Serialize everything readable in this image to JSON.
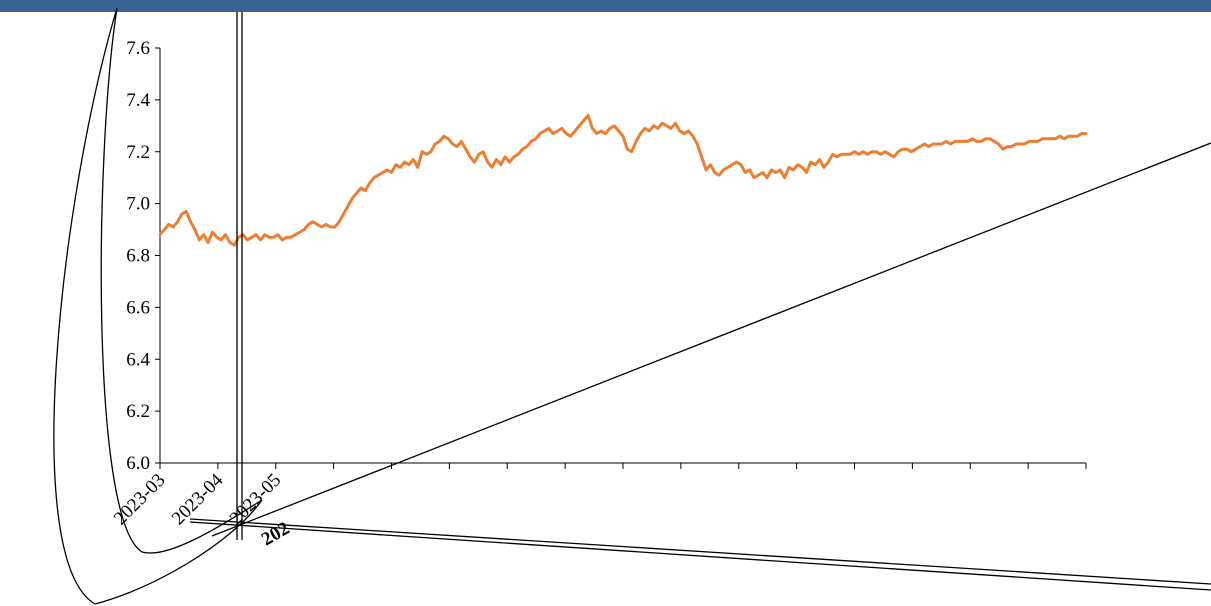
{
  "colors": {
    "header": "#3b6294",
    "series": "#ed7d31",
    "axis": "#000000"
  },
  "chart_data": {
    "type": "line",
    "title": "",
    "xlabel": "",
    "ylabel": "",
    "ylim": [
      6.0,
      7.6
    ],
    "y_ticks": [
      6.0,
      6.2,
      6.4,
      6.6,
      6.8,
      7.0,
      7.2,
      7.4,
      7.6
    ],
    "y_tick_labels": [
      "6.0",
      "6.2",
      "6.4",
      "6.6",
      "6.8",
      "7.0",
      "7.2",
      "7.4",
      "7.6"
    ],
    "x_tick_labels": [
      "2023-03",
      "2023-04",
      "2023-05",
      "",
      "",
      "",
      "",
      "",
      "",
      "",
      "",
      "",
      "",
      "",
      "",
      "",
      ""
    ],
    "x_fragment_label": "202",
    "grid": false,
    "legend": "none",
    "series": [
      {
        "values": [
          6.88,
          6.9,
          6.92,
          6.91,
          6.93,
          6.96,
          6.97,
          6.93,
          6.9,
          6.86,
          6.88,
          6.85,
          6.89,
          6.87,
          6.86,
          6.88,
          6.85,
          6.84,
          6.87,
          6.88,
          6.86,
          6.87,
          6.88,
          6.86,
          6.88,
          6.87,
          6.87,
          6.88,
          6.86,
          6.87,
          6.87,
          6.88,
          6.89,
          6.9,
          6.92,
          6.93,
          6.92,
          6.91,
          6.92,
          6.91,
          6.91,
          6.93,
          6.96,
          6.99,
          7.02,
          7.04,
          7.06,
          7.05,
          7.08,
          7.1,
          7.11,
          7.12,
          7.13,
          7.12,
          7.15,
          7.14,
          7.16,
          7.15,
          7.17,
          7.14,
          7.2,
          7.19,
          7.2,
          7.23,
          7.24,
          7.26,
          7.25,
          7.23,
          7.22,
          7.24,
          7.21,
          7.18,
          7.16,
          7.19,
          7.2,
          7.16,
          7.14,
          7.17,
          7.15,
          7.18,
          7.16,
          7.18,
          7.19,
          7.21,
          7.22,
          7.24,
          7.25,
          7.27,
          7.28,
          7.29,
          7.27,
          7.28,
          7.29,
          7.27,
          7.26,
          7.28,
          7.3,
          7.32,
          7.34,
          7.29,
          7.27,
          7.28,
          7.27,
          7.29,
          7.3,
          7.28,
          7.26,
          7.21,
          7.2,
          7.24,
          7.27,
          7.29,
          7.28,
          7.3,
          7.29,
          7.31,
          7.3,
          7.29,
          7.31,
          7.28,
          7.27,
          7.28,
          7.26,
          7.23,
          7.18,
          7.13,
          7.15,
          7.12,
          7.11,
          7.13,
          7.14,
          7.15,
          7.16,
          7.15,
          7.12,
          7.13,
          7.1,
          7.11,
          7.12,
          7.1,
          7.13,
          7.12,
          7.13,
          7.1,
          7.14,
          7.13,
          7.15,
          7.14,
          7.12,
          7.16,
          7.15,
          7.17,
          7.14,
          7.16,
          7.19,
          7.18,
          7.19,
          7.19,
          7.19,
          7.2,
          7.19,
          7.2,
          7.19,
          7.2,
          7.2,
          7.19,
          7.2,
          7.19,
          7.18,
          7.2,
          7.21,
          7.21,
          7.2,
          7.21,
          7.22,
          7.23,
          7.22,
          7.23,
          7.23,
          7.23,
          7.24,
          7.23,
          7.24,
          7.24,
          7.24,
          7.24,
          7.25,
          7.24,
          7.24,
          7.25,
          7.25,
          7.24,
          7.23,
          7.21,
          7.22,
          7.22,
          7.23,
          7.23,
          7.23,
          7.24,
          7.24,
          7.24,
          7.25,
          7.25,
          7.25,
          7.25,
          7.26,
          7.25,
          7.26,
          7.26,
          7.26,
          7.27,
          7.27
        ]
      }
    ]
  }
}
